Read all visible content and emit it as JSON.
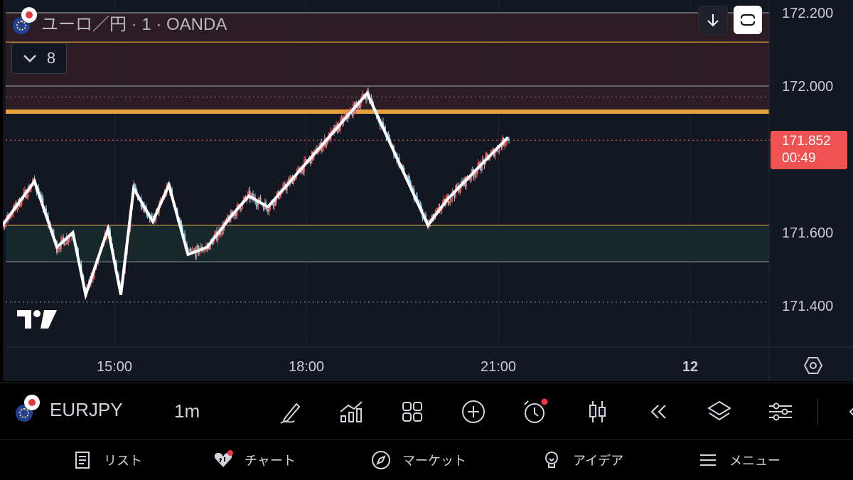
{
  "header": {
    "symbol_title": "ユーロ／円 · 1 · OANDA",
    "indicator_count": "8"
  },
  "colors": {
    "background": "#131722",
    "up_candle": "#ef5350",
    "down_candle": "#7fc4dc",
    "zigzag": "#ffffff",
    "resistance_zone": "#2c1c24",
    "support_zone": "#17282a",
    "orange_line": "#e8a33a",
    "badge": "#f05151"
  },
  "price_badge": {
    "price": "171.852",
    "countdown": "00:49"
  },
  "chart_data": {
    "type": "line",
    "symbol": "EURJPY",
    "interval": "1m",
    "y_ticks": [
      "172.200",
      "172.000",
      "171.600",
      "171.400"
    ],
    "x_ticks": [
      "15:00",
      "18:00",
      "21:00",
      "12"
    ],
    "ylim": [
      171.33,
      172.2
    ],
    "xlim_hours": [
      13.0,
      25.0
    ],
    "zigzag_series": {
      "name": "",
      "x_hours": [
        13.05,
        13.25,
        13.75,
        14.1,
        14.35,
        14.55,
        14.9,
        15.1,
        15.3,
        15.6,
        15.85,
        16.15,
        16.45,
        16.85,
        17.1,
        17.4,
        18.95,
        19.9,
        20.2,
        21.15
      ],
      "y": [
        171.74,
        171.62,
        171.74,
        171.56,
        171.6,
        171.43,
        171.61,
        171.43,
        171.72,
        171.63,
        171.73,
        171.54,
        171.56,
        171.65,
        171.7,
        171.67,
        171.98,
        171.62,
        171.69,
        171.86
      ]
    },
    "horizontal_levels": [
      {
        "price": 172.2,
        "style": "solid-gray"
      },
      {
        "price": 172.12,
        "style": "solid-orange"
      },
      {
        "price": 172.0,
        "style": "solid-gray"
      },
      {
        "price": 171.97,
        "style": "dotted"
      },
      {
        "price": 171.93,
        "style": "thick-orange"
      },
      {
        "price": 171.852,
        "style": "dotted-red"
      },
      {
        "price": 171.62,
        "style": "solid-orange"
      },
      {
        "price": 171.52,
        "style": "solid-gray"
      },
      {
        "price": 171.41,
        "style": "dotted"
      }
    ],
    "zones": [
      {
        "from": 171.93,
        "to": 172.2,
        "kind": "resistance"
      },
      {
        "from": 171.52,
        "to": 171.62,
        "kind": "support"
      }
    ]
  },
  "toolbar": {
    "symbol": "EURJPY",
    "interval": "1m"
  },
  "bottom_nav": {
    "list": "リスト",
    "chart": "チャート",
    "market": "マーケット",
    "ideas": "アイデア",
    "menu": "メニュー"
  }
}
